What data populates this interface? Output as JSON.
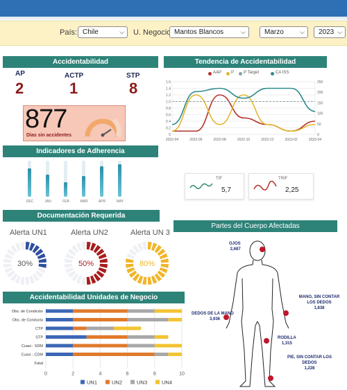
{
  "filters": {
    "pais": {
      "label": "País:",
      "value": "Chile"
    },
    "negocio": {
      "label": "U. Negocio:",
      "value": "Mantos Blancos"
    },
    "mes": {
      "value": "Marzo"
    },
    "anio": {
      "value": "2023"
    }
  },
  "accidentabilidad": {
    "title": "Accidentabilidad",
    "ap": {
      "label": "AP",
      "value": "2"
    },
    "actp": {
      "label": "ACTP",
      "value": "1"
    },
    "stp": {
      "label": "STP",
      "value": "8"
    },
    "dias_value": "877",
    "dias_label": "Días sin accidentes"
  },
  "tendencia": {
    "title": "Tendencia de Accidentabilidad",
    "legend": [
      "AAP",
      "P",
      "P Target",
      "CA ISS"
    ],
    "colors": {
      "AAP": "#b3312c",
      "P": "#e2b62a",
      "P Target": "#8aa0a8",
      "CA ISS": "#2e8a8a"
    }
  },
  "adherencia": {
    "title": "Indicadores de Adherencia",
    "bars": [
      {
        "label": "DEC",
        "value": 0.78
      },
      {
        "label": "JAN",
        "value": 0.62
      },
      {
        "label": "FEB",
        "value": 0.4
      },
      {
        "label": "MAR",
        "value": 0.58
      },
      {
        "label": "APR",
        "value": 0.85
      },
      {
        "label": "MAY",
        "value": 0.9
      }
    ]
  },
  "tif": {
    "label": "TIF",
    "value": "5,7",
    "color": "#2e8a6e"
  },
  "trif": {
    "label": "TRIF",
    "value": "2,25",
    "color": "#b3312c"
  },
  "documentacion": {
    "title": "Documentación Requerida",
    "alerts": [
      {
        "label": "Alerta UN1",
        "value": "30%",
        "fraction": 0.3,
        "color": "#2f4f9e"
      },
      {
        "label": "Alerta UN2",
        "value": "50%",
        "fraction": 0.5,
        "color": "#a81d1d"
      },
      {
        "label": "Alerta UN 3",
        "value": "80%",
        "fraction": 0.8,
        "color": "#f0b52a"
      }
    ]
  },
  "partes": {
    "title": "Partes del Cuerpo Afectadas",
    "items": [
      {
        "name": "OJOS",
        "value": "2,687"
      },
      {
        "name": "MANO, SIN CONTAR LOS DEDOS",
        "value": "1,838"
      },
      {
        "name": "DEDOS DE LA MANO",
        "value": "3,936"
      },
      {
        "name": "RODILLA",
        "value": "1,315"
      },
      {
        "name": "PIE, SIN CONTAR LOS DEDOS",
        "value": "1,228"
      }
    ]
  },
  "chart_data": [
    {
      "type": "line",
      "title": "Tendencia de Accidentabilidad",
      "x": [
        "2022-04",
        "2022-06",
        "2022-08",
        "2022-10",
        "2022-12",
        "2023-02",
        "2023-04"
      ],
      "left_ticks": [
        "1.6",
        "1.4",
        "1.2",
        "1.0",
        "0.8",
        "0.6",
        "0.4",
        "0.2",
        "0"
      ],
      "right_ticks": [
        "250",
        "200",
        "150",
        "100",
        "50",
        "0"
      ],
      "series": [
        {
          "name": "AAP",
          "values": [
            0.1,
            0.1,
            1.2,
            0.5,
            0.3,
            0.1,
            0.4
          ]
        },
        {
          "name": "P",
          "values": [
            0.1,
            1.2,
            0.3,
            1.2,
            0.3,
            0.1,
            0.3
          ]
        },
        {
          "name": "P Target",
          "values": [
            1.0,
            1.0,
            1.0,
            1.0,
            1.0,
            1.0,
            1.0
          ]
        },
        {
          "name": "CA ISS",
          "values": [
            0.3,
            1.3,
            1.4,
            1.1,
            1.4,
            1.4,
            0.7
          ]
        }
      ]
    },
    {
      "type": "bar",
      "title": "Accidentabilidad Unidades de Negocio",
      "categories": [
        "Obs. de Condición",
        "Obs. de Conducta",
        "CTP",
        "STP",
        "Cuasi - SDM",
        "Cuasi - CDM",
        "Fatal"
      ],
      "xlim": [
        0,
        10
      ],
      "x_ticks": [
        "0",
        "2",
        "4",
        "6",
        "8",
        "10"
      ],
      "series": [
        {
          "name": "UN1",
          "values": [
            2,
            2,
            2,
            3,
            2,
            2,
            0
          ]
        },
        {
          "name": "UN2",
          "values": [
            4,
            4,
            1,
            3,
            4,
            6,
            0
          ]
        },
        {
          "name": "UN3",
          "values": [
            2,
            3,
            2,
            2,
            2,
            1,
            0
          ]
        },
        {
          "name": "UN4",
          "values": [
            2,
            1,
            2,
            1,
            2,
            1,
            0
          ]
        }
      ],
      "colors": {
        "UN1": "#3c67b5",
        "UN2": "#e07a2c",
        "UN3": "#a8a8a8",
        "UN4": "#f3c331"
      }
    }
  ]
}
